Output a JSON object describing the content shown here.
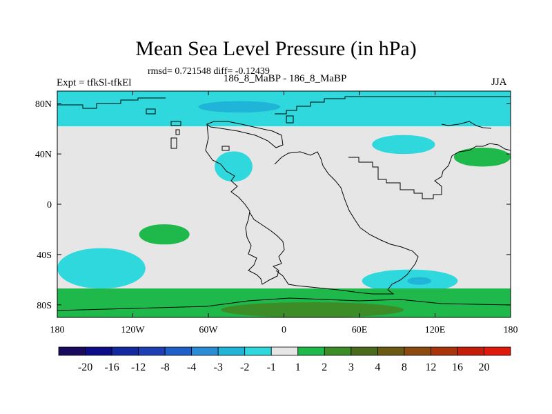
{
  "header": {
    "title": "Mean Sea Level Pressure (in hPa)",
    "stats": "rmsd= 0.721548 diff= -0.12439",
    "experiment": "Expt = tfkSl-tfkEl",
    "experiment_names": "186_8_MaBP - 186_8_MaBP",
    "season": "JJA"
  },
  "chart_data": {
    "type": "heatmap",
    "title": "Mean Sea Level Pressure (in hPa)",
    "projection": "cylindrical equidistant map",
    "xlim": [
      -180,
      180
    ],
    "ylim": [
      -90,
      90
    ],
    "x_ticks": [
      {
        "value": -180,
        "label": "180"
      },
      {
        "value": -120,
        "label": "120W"
      },
      {
        "value": -60,
        "label": "60W"
      },
      {
        "value": 0,
        "label": "0"
      },
      {
        "value": 60,
        "label": "60E"
      },
      {
        "value": 120,
        "label": "120E"
      },
      {
        "value": 180,
        "label": "180"
      }
    ],
    "y_ticks": [
      {
        "value": 80,
        "label": "80N"
      },
      {
        "value": 40,
        "label": "40N"
      },
      {
        "value": 0,
        "label": "0"
      },
      {
        "value": -40,
        "label": "40S"
      },
      {
        "value": -80,
        "label": "80S"
      }
    ],
    "colorbar": {
      "levels": [
        "-20",
        "-16",
        "-12",
        "-8",
        "-4",
        "-3",
        "-2",
        "-1",
        "1",
        "2",
        "3",
        "4",
        "8",
        "12",
        "16",
        "20"
      ],
      "colors": [
        "#1a0a5e",
        "#0d0d8a",
        "#1428a0",
        "#1e3fb4",
        "#1e5fc8",
        "#2b8cd6",
        "#1fb4d8",
        "#2ed8dc",
        "#e6e6e6",
        "#1fb84a",
        "#3c8c28",
        "#4a6a1e",
        "#6a5a14",
        "#8a4a10",
        "#a8340c",
        "#c41e0a",
        "#e01a0a"
      ]
    },
    "background_value_color": "#e6e6e6",
    "regions": [
      {
        "name": "arctic-band",
        "range": "-2 to -1",
        "color": "#2ed8dc",
        "lon": [
          -180,
          180
        ],
        "lat": [
          62,
          90
        ]
      },
      {
        "name": "arctic-low-core",
        "range": "-3 to -2",
        "color": "#1fb4d8",
        "lon": [
          -68,
          -3
        ],
        "lat": [
          73,
          82
        ]
      },
      {
        "name": "north-atlantic-low",
        "range": "-2 to -1",
        "color": "#2ed8dc",
        "lon": [
          -55,
          -25
        ],
        "lat": [
          18,
          42
        ]
      },
      {
        "name": "asia-low",
        "range": "-2 to -1",
        "color": "#2ed8dc",
        "lon": [
          70,
          120
        ],
        "lat": [
          40,
          55
        ]
      },
      {
        "name": "north-pacific-high",
        "range": "1 to 2",
        "color": "#1fb84a",
        "lon": [
          135,
          180
        ],
        "lat": [
          30,
          45
        ]
      },
      {
        "name": "tropical-pacific-high",
        "range": "1 to 2",
        "color": "#1fb84a",
        "lon": [
          -115,
          -75
        ],
        "lat": [
          -32,
          -16
        ]
      },
      {
        "name": "south-pacific-low",
        "range": "-2 to -1",
        "color": "#2ed8dc",
        "lon": [
          -180,
          -110
        ],
        "lat": [
          -67,
          -35
        ]
      },
      {
        "name": "south-indian-low",
        "range": "-2 to -1",
        "color": "#2ed8dc",
        "lon": [
          62,
          138
        ],
        "lat": [
          -70,
          -52
        ]
      },
      {
        "name": "south-indian-low-core",
        "range": "-3 to -2",
        "color": "#1fb4d8",
        "lon": [
          98,
          117
        ],
        "lat": [
          -64,
          -58
        ]
      },
      {
        "name": "southern-ocean-high",
        "range": "1 to 2",
        "color": "#1fb84a",
        "lon": [
          -180,
          180
        ],
        "lat": [
          -90,
          -67
        ]
      },
      {
        "name": "antarctic-high",
        "range": "2 to 3",
        "color": "#3c8c28",
        "lon": [
          -50,
          95
        ],
        "lat": [
          -90,
          -78
        ]
      }
    ]
  }
}
